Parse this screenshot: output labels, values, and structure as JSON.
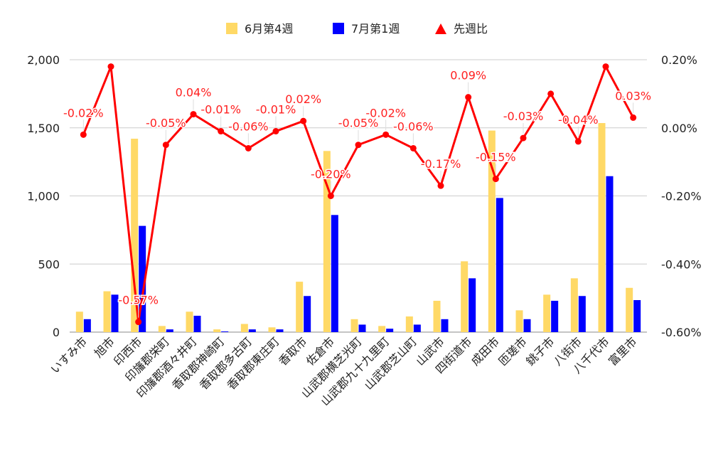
{
  "chart_data": {
    "type": "bar",
    "categories": [
      "いすみ市",
      "旭市",
      "印西市",
      "印旛郡栄町",
      "印旛郡酒々井町",
      "香取郡神崎町",
      "香取郡多古町",
      "香取郡東庄町",
      "香取市",
      "佐倉市",
      "山武郡横芝光町",
      "山武郡九十九里町",
      "山武郡芝山町",
      "山武市",
      "四街道市",
      "成田市",
      "匝瑳市",
      "銚子市",
      "八街市",
      "八千代市",
      "富里市"
    ],
    "series": [
      {
        "name": "6月第4週",
        "kind": "bar",
        "axis": "left",
        "color": "#FFD966",
        "values": [
          150,
          300,
          1420,
          45,
          150,
          20,
          60,
          35,
          370,
          1330,
          95,
          45,
          115,
          230,
          520,
          1480,
          160,
          275,
          395,
          1535,
          325
        ]
      },
      {
        "name": "7月第1週",
        "kind": "bar",
        "axis": "left",
        "color": "#0000FF",
        "values": [
          95,
          275,
          780,
          20,
          120,
          5,
          20,
          20,
          265,
          860,
          55,
          25,
          55,
          95,
          395,
          985,
          95,
          230,
          265,
          1145,
          235
        ]
      },
      {
        "name": "先週比",
        "kind": "line",
        "axis": "right",
        "color": "#FF0000",
        "unit": "%",
        "values": [
          -0.02,
          0.18,
          -0.57,
          -0.05,
          0.04,
          -0.01,
          -0.06,
          -0.01,
          0.02,
          -0.2,
          -0.05,
          -0.02,
          -0.06,
          -0.17,
          0.09,
          -0.15,
          -0.03,
          0.1,
          -0.04,
          0.18,
          0.03
        ],
        "labels": [
          "-0.02%",
          "",
          "-0.57%",
          "-0.05%",
          "0.04%",
          "-0.01%",
          "-0.06%",
          "-0.01%",
          "0.02%",
          "-0.20%",
          "-0.05%",
          "-0.02%",
          "-0.06%",
          "-0.17%",
          "0.09%",
          "-0.15%",
          "-0.03%",
          "",
          "-0.04%",
          "",
          "0.03%"
        ]
      }
    ],
    "y_left": {
      "min": 0,
      "max": 2000,
      "ticks": [
        0,
        500,
        1000,
        1500,
        2000
      ],
      "tick_labels": [
        "0",
        "500",
        "1,000",
        "1,500",
        "2,000"
      ]
    },
    "y_right": {
      "min": -0.6,
      "max": 0.2,
      "ticks": [
        -0.6,
        -0.4,
        -0.2,
        0,
        0.2
      ],
      "tick_labels": [
        "-0.60%",
        "-0.40%",
        "-0.20%",
        "0.00%",
        "0.20%"
      ]
    },
    "grid": true,
    "legend": "top-center",
    "colors": {
      "grid": "#cccccc",
      "axis_text": "#222222",
      "label": "#ff2020"
    }
  }
}
